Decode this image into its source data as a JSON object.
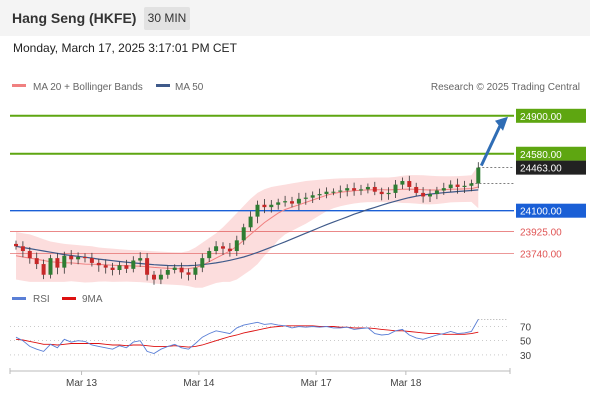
{
  "header": {
    "title": "Hang Seng (HKFE)",
    "timeframe": "30 MIN",
    "timestamp": "Monday, March 17, 2025 3:17:01 PM CET"
  },
  "legend": {
    "ma20": "MA 20 + Bollinger Bands",
    "ma50": "MA 50",
    "copyright": "Research © 2025 Trading Central",
    "rsi": "RSI",
    "rsi_ma": "9MA"
  },
  "colors": {
    "bull_candle": "#2e7d32",
    "bear_candle": "#c62828",
    "ma20": "#f08080",
    "bollinger_fill": "#fbd7d7",
    "ma50": "#3f5a8a",
    "resistance": "#5ea611",
    "pivot": "#1a5fd6",
    "support": "#e05555",
    "rsi": "#5a7fd6",
    "rsi_ma": "#dd1111",
    "arrow": "#2f6db5"
  },
  "chart_data": {
    "type": "candlestick",
    "ylim": [
      23600,
      25050
    ],
    "x_tick_labels": [
      "Mar 13",
      "Mar 14",
      "Mar 17",
      "Mar 18"
    ],
    "x_tick_positions": [
      9.5,
      26.5,
      43.5,
      56.5
    ],
    "levels": [
      {
        "label": "24900.00",
        "value": 24900,
        "kind": "resistance"
      },
      {
        "label": "24580.00",
        "value": 24580,
        "kind": "resistance"
      },
      {
        "label": "24463.00",
        "value": 24463,
        "kind": "last"
      },
      {
        "label": "24100.00",
        "value": 24100,
        "kind": "pivot"
      },
      {
        "label": "23925.00",
        "value": 23925,
        "kind": "support"
      },
      {
        "label": "23740.00",
        "value": 23740,
        "kind": "support"
      }
    ],
    "closes": [
      23800,
      23760,
      23700,
      23650,
      23560,
      23700,
      23620,
      23720,
      23690,
      23710,
      23700,
      23660,
      23640,
      23620,
      23600,
      23640,
      23610,
      23680,
      23700,
      23560,
      23520,
      23560,
      23600,
      23620,
      23580,
      23560,
      23620,
      23700,
      23760,
      23800,
      23780,
      23760,
      23850,
      23960,
      24050,
      24150,
      24130,
      24150,
      24170,
      24180,
      24160,
      24200,
      24210,
      24230,
      24240,
      24260,
      24260,
      24270,
      24290,
      24270,
      24280,
      24300,
      24260,
      24240,
      24250,
      24320,
      24350,
      24300,
      24250,
      24220,
      24240,
      24270,
      24290,
      24320,
      24300,
      24310,
      24330,
      24463
    ],
    "ma20": [
      23720,
      23710,
      23700,
      23690,
      23680,
      23670,
      23665,
      23660,
      23660,
      23655,
      23650,
      23648,
      23646,
      23644,
      23640,
      23638,
      23636,
      23634,
      23632,
      23628,
      23622,
      23618,
      23615,
      23612,
      23610,
      23612,
      23620,
      23640,
      23670,
      23700,
      23730,
      23760,
      23800,
      23850,
      23900,
      23950,
      24000,
      24040,
      24080,
      24110,
      24130,
      24150,
      24170,
      24190,
      24210,
      24230,
      24245,
      24255,
      24262,
      24268,
      24272,
      24275,
      24276,
      24276,
      24275,
      24278,
      24280,
      24282,
      24280,
      24276,
      24274,
      24274,
      24276,
      24280,
      24282,
      24284,
      24286,
      24300
    ],
    "bb_upper": [
      23920,
      23910,
      23900,
      23880,
      23860,
      23840,
      23830,
      23820,
      23815,
      23810,
      23805,
      23800,
      23790,
      23785,
      23780,
      23775,
      23770,
      23768,
      23766,
      23762,
      23758,
      23755,
      23752,
      23750,
      23748,
      23760,
      23790,
      23830,
      23870,
      23910,
      23960,
      24020,
      24080,
      24140,
      24200,
      24250,
      24280,
      24300,
      24310,
      24320,
      24330,
      24340,
      24350,
      24355,
      24360,
      24365,
      24370,
      24372,
      24374,
      24375,
      24376,
      24378,
      24380,
      24380,
      24380,
      24385,
      24395,
      24400,
      24400,
      24398,
      24395,
      24392,
      24390,
      24390,
      24392,
      24395,
      24398,
      24480
    ],
    "bb_lower": [
      23520,
      23510,
      23500,
      23500,
      23500,
      23500,
      23500,
      23500,
      23505,
      23500,
      23495,
      23496,
      23502,
      23503,
      23500,
      23501,
      23502,
      23500,
      23498,
      23494,
      23486,
      23481,
      23478,
      23474,
      23472,
      23464,
      23450,
      23450,
      23470,
      23490,
      23500,
      23500,
      23520,
      23560,
      23600,
      23650,
      23720,
      23780,
      23850,
      23900,
      23930,
      23960,
      23990,
      24025,
      24060,
      24095,
      24120,
      24138,
      24150,
      24161,
      24168,
      24172,
      24172,
      24172,
      24170,
      24171,
      24165,
      24164,
      24160,
      24154,
      24153,
      24156,
      24162,
      24170,
      24172,
      24173,
      24174,
      24120
    ],
    "ma50": [
      23800,
      23790,
      23780,
      23770,
      23760,
      23750,
      23740,
      23730,
      23722,
      23715,
      23708,
      23700,
      23692,
      23685,
      23678,
      23672,
      23666,
      23660,
      23655,
      23650,
      23645,
      23641,
      23638,
      23636,
      23636,
      23637,
      23640,
      23645,
      23652,
      23660,
      23670,
      23682,
      23695,
      23710,
      23728,
      23748,
      23770,
      23792,
      23815,
      23838,
      23862,
      23886,
      23910,
      23934,
      23958,
      23982,
      24004,
      24026,
      24048,
      24070,
      24090,
      24110,
      24128,
      24146,
      24164,
      24180,
      24196,
      24210,
      24222,
      24232,
      24240,
      24246,
      24252,
      24257,
      24262,
      24266,
      24270,
      24275
    ],
    "rsi": [
      55,
      50,
      42,
      38,
      35,
      45,
      40,
      52,
      48,
      50,
      49,
      44,
      42,
      40,
      38,
      43,
      40,
      48,
      50,
      35,
      32,
      38,
      42,
      45,
      40,
      38,
      46,
      55,
      60,
      64,
      62,
      60,
      68,
      72,
      74,
      76,
      73,
      74,
      72,
      71,
      68,
      70,
      69,
      70,
      69,
      70,
      68,
      68,
      69,
      66,
      67,
      68,
      60,
      58,
      59,
      64,
      66,
      58,
      54,
      52,
      55,
      58,
      60,
      63,
      60,
      61,
      63,
      80
    ],
    "rsi_ma": [
      52,
      51,
      49,
      47,
      45,
      45,
      44,
      45,
      46,
      46,
      46,
      46,
      46,
      45,
      44,
      44,
      43,
      44,
      44,
      43,
      42,
      42,
      42,
      43,
      42,
      41,
      42,
      44,
      47,
      50,
      53,
      56,
      58,
      61,
      63,
      65,
      67,
      69,
      70,
      71,
      71,
      71,
      71,
      71,
      70,
      70,
      70,
      69,
      69,
      68,
      68,
      68,
      67,
      66,
      65,
      64,
      64,
      63,
      62,
      61,
      60,
      60,
      59,
      59,
      59,
      59,
      60,
      62
    ],
    "rsi_ticks": [
      70,
      50,
      30
    ],
    "rsi_ylim": [
      20,
      82
    ]
  }
}
